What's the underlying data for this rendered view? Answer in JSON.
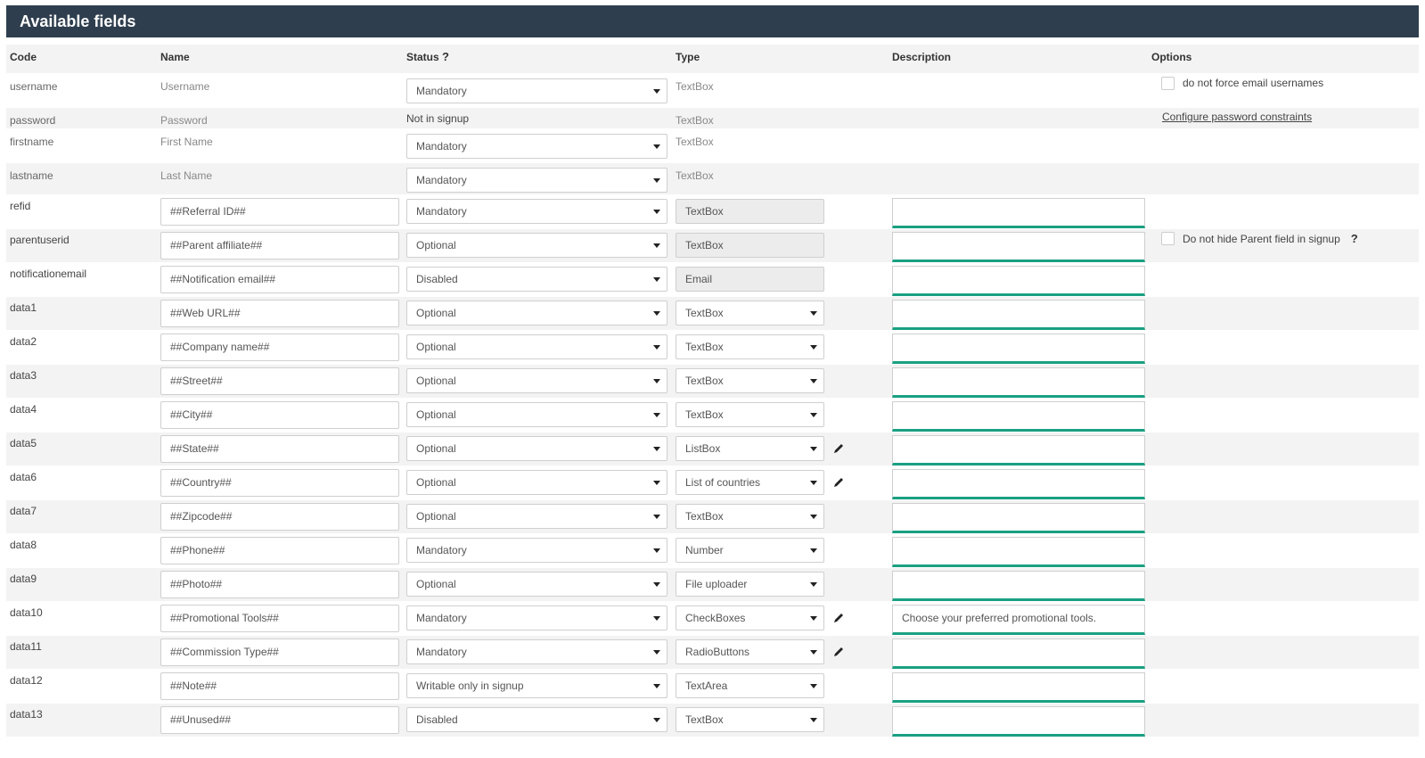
{
  "panel": {
    "title": "Available fields"
  },
  "columns": {
    "code": "Code",
    "name": "Name",
    "status": "Status",
    "status_help": "?",
    "type": "Type",
    "description": "Description",
    "options": "Options"
  },
  "rows": [
    {
      "code": "username",
      "name": "Username",
      "name_editable": false,
      "status": "Mandatory",
      "status_select": true,
      "type": "TextBox",
      "type_mode": "plain",
      "has_desc": false,
      "option": {
        "kind": "checkbox",
        "label": "do not force email usernames"
      }
    },
    {
      "code": "password",
      "name": "Password",
      "name_editable": false,
      "status": "Not in signup",
      "status_select": false,
      "type": "TextBox",
      "type_mode": "plain",
      "has_desc": false,
      "option": {
        "kind": "link",
        "label": "Configure password constraints"
      }
    },
    {
      "code": "firstname",
      "name": "First Name",
      "name_editable": false,
      "status": "Mandatory",
      "status_select": true,
      "type": "TextBox",
      "type_mode": "plain",
      "has_desc": false
    },
    {
      "code": "lastname",
      "name": "Last Name",
      "name_editable": false,
      "status": "Mandatory",
      "status_select": true,
      "type": "TextBox",
      "type_mode": "plain",
      "has_desc": false
    },
    {
      "code": "refid",
      "name": "##Referral ID##",
      "name_editable": true,
      "status": "Mandatory",
      "status_select": true,
      "type": "TextBox",
      "type_mode": "disabled",
      "has_desc": true,
      "desc": ""
    },
    {
      "code": "parentuserid",
      "name": "##Parent affiliate##",
      "name_editable": true,
      "status": "Optional",
      "status_select": true,
      "type": "TextBox",
      "type_mode": "disabled",
      "has_desc": true,
      "desc": "",
      "option": {
        "kind": "checkbox",
        "label": "Do not hide Parent field in signup",
        "help": "?"
      }
    },
    {
      "code": "notificationemail",
      "name": "##Notification email##",
      "name_editable": true,
      "status": "Disabled",
      "status_select": true,
      "type": "Email",
      "type_mode": "disabled",
      "has_desc": true,
      "desc": ""
    },
    {
      "code": "data1",
      "name": "##Web URL##",
      "name_editable": true,
      "status": "Optional",
      "status_select": true,
      "type": "TextBox",
      "type_mode": "select",
      "has_desc": true,
      "desc": ""
    },
    {
      "code": "data2",
      "name": "##Company name##",
      "name_editable": true,
      "status": "Optional",
      "status_select": true,
      "type": "TextBox",
      "type_mode": "select",
      "has_desc": true,
      "desc": ""
    },
    {
      "code": "data3",
      "name": "##Street##",
      "name_editable": true,
      "status": "Optional",
      "status_select": true,
      "type": "TextBox",
      "type_mode": "select",
      "has_desc": true,
      "desc": ""
    },
    {
      "code": "data4",
      "name": "##City##",
      "name_editable": true,
      "status": "Optional",
      "status_select": true,
      "type": "TextBox",
      "type_mode": "select",
      "has_desc": true,
      "desc": ""
    },
    {
      "code": "data5",
      "name": "##State##",
      "name_editable": true,
      "status": "Optional",
      "status_select": true,
      "type": "ListBox",
      "type_mode": "select",
      "edit_icon": true,
      "has_desc": true,
      "desc": ""
    },
    {
      "code": "data6",
      "name": "##Country##",
      "name_editable": true,
      "status": "Optional",
      "status_select": true,
      "type": "List of countries",
      "type_mode": "select",
      "edit_icon": true,
      "has_desc": true,
      "desc": ""
    },
    {
      "code": "data7",
      "name": "##Zipcode##",
      "name_editable": true,
      "status": "Optional",
      "status_select": true,
      "type": "TextBox",
      "type_mode": "select",
      "has_desc": true,
      "desc": ""
    },
    {
      "code": "data8",
      "name": "##Phone##",
      "name_editable": true,
      "status": "Mandatory",
      "status_select": true,
      "type": "Number",
      "type_mode": "select",
      "has_desc": true,
      "desc": ""
    },
    {
      "code": "data9",
      "name": "##Photo##",
      "name_editable": true,
      "status": "Optional",
      "status_select": true,
      "type": "File uploader",
      "type_mode": "select",
      "has_desc": true,
      "desc": ""
    },
    {
      "code": "data10",
      "name": "##Promotional Tools##",
      "name_editable": true,
      "status": "Mandatory",
      "status_select": true,
      "type": "CheckBoxes",
      "type_mode": "select",
      "edit_icon": true,
      "has_desc": true,
      "desc": "Choose your preferred promotional tools."
    },
    {
      "code": "data11",
      "name": "##Commission Type##",
      "name_editable": true,
      "status": "Mandatory",
      "status_select": true,
      "type": "RadioButtons",
      "type_mode": "select",
      "edit_icon": true,
      "has_desc": true,
      "desc": ""
    },
    {
      "code": "data12",
      "name": "##Note##",
      "name_editable": true,
      "status": "Writable only in signup",
      "status_select": true,
      "type": "TextArea",
      "type_mode": "select",
      "has_desc": true,
      "desc": ""
    },
    {
      "code": "data13",
      "name": "##Unused##",
      "name_editable": true,
      "status": "Disabled",
      "status_select": true,
      "type": "TextBox",
      "type_mode": "select",
      "has_desc": true,
      "desc": ""
    }
  ],
  "colors": {
    "header_bg": "#2e3e4e",
    "accent": "#19a082",
    "alt_row": "#f3f3f3"
  }
}
